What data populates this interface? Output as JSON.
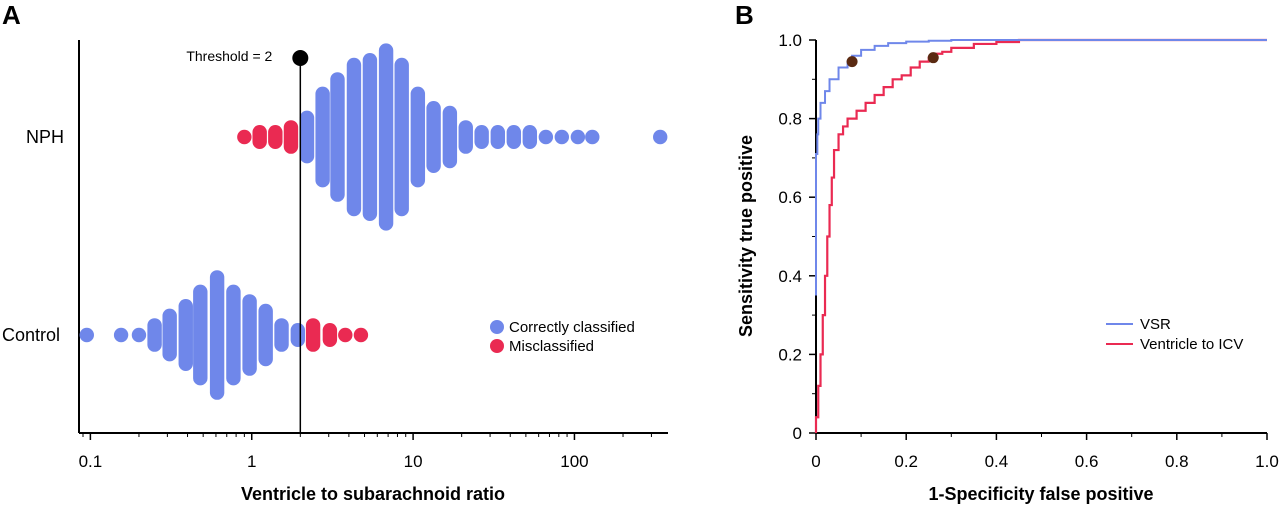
{
  "chart_data": [
    {
      "panel": "A",
      "type": "scatter",
      "subtype": "beeswarm",
      "xlabel": "Ventricle to subarachnoid ratio",
      "ylabel": "",
      "xscale": "log",
      "xlim": [
        0.085,
        380
      ],
      "xticks": [
        0.1,
        1,
        10,
        100
      ],
      "xtick_labels": [
        "0.1",
        "1",
        "10",
        "100"
      ],
      "categories": [
        "NPH",
        "Control"
      ],
      "threshold": {
        "value": 2,
        "label": "Threshold = 2"
      },
      "legend": {
        "position": "right",
        "entries": [
          {
            "label": "Correctly classified",
            "color": "#6f87ea"
          },
          {
            "label": "Misclassified",
            "color": "#ea2a52"
          }
        ]
      },
      "series": [
        {
          "name": "NPH",
          "columns": [
            {
              "x": 0.9,
              "count": 1,
              "status": "Misclassified"
            },
            {
              "x": 1.12,
              "count": 2,
              "status": "Misclassified"
            },
            {
              "x": 1.4,
              "count": 2,
              "status": "Misclassified"
            },
            {
              "x": 1.75,
              "count": 3,
              "status": "Misclassified"
            },
            {
              "x": 2.2,
              "count": 5,
              "status": "Correctly classified"
            },
            {
              "x": 2.75,
              "count": 10,
              "status": "Correctly classified"
            },
            {
              "x": 3.4,
              "count": 13,
              "status": "Correctly classified"
            },
            {
              "x": 4.3,
              "count": 16,
              "status": "Correctly classified"
            },
            {
              "x": 5.4,
              "count": 17,
              "status": "Correctly classified"
            },
            {
              "x": 6.8,
              "count": 19,
              "status": "Correctly classified"
            },
            {
              "x": 8.5,
              "count": 16,
              "status": "Correctly classified"
            },
            {
              "x": 10.7,
              "count": 10,
              "status": "Correctly classified"
            },
            {
              "x": 13.4,
              "count": 7,
              "status": "Correctly classified"
            },
            {
              "x": 16.9,
              "count": 6,
              "status": "Correctly classified"
            },
            {
              "x": 21.2,
              "count": 3,
              "status": "Correctly classified"
            },
            {
              "x": 26.6,
              "count": 2,
              "status": "Correctly classified"
            },
            {
              "x": 33.5,
              "count": 2,
              "status": "Correctly classified"
            },
            {
              "x": 42.1,
              "count": 2,
              "status": "Correctly classified"
            },
            {
              "x": 52.9,
              "count": 2,
              "status": "Correctly classified"
            },
            {
              "x": 66.5,
              "count": 1,
              "status": "Correctly classified"
            },
            {
              "x": 83.5,
              "count": 1,
              "status": "Correctly classified"
            },
            {
              "x": 105,
              "count": 1,
              "status": "Correctly classified"
            },
            {
              "x": 129,
              "count": 1,
              "status": "Correctly classified"
            },
            {
              "x": 340,
              "count": 1,
              "status": "Correctly classified"
            }
          ]
        },
        {
          "name": "Control",
          "columns": [
            {
              "x": 0.095,
              "count": 1,
              "status": "Correctly classified"
            },
            {
              "x": 0.155,
              "count": 1,
              "status": "Correctly classified"
            },
            {
              "x": 0.2,
              "count": 1,
              "status": "Correctly classified"
            },
            {
              "x": 0.25,
              "count": 3,
              "status": "Correctly classified"
            },
            {
              "x": 0.31,
              "count": 5,
              "status": "Correctly classified"
            },
            {
              "x": 0.39,
              "count": 7,
              "status": "Correctly classified"
            },
            {
              "x": 0.48,
              "count": 10,
              "status": "Correctly classified"
            },
            {
              "x": 0.61,
              "count": 13,
              "status": "Correctly classified"
            },
            {
              "x": 0.77,
              "count": 10,
              "status": "Correctly classified"
            },
            {
              "x": 0.97,
              "count": 8,
              "status": "Correctly classified"
            },
            {
              "x": 1.22,
              "count": 6,
              "status": "Correctly classified"
            },
            {
              "x": 1.53,
              "count": 3,
              "status": "Correctly classified"
            },
            {
              "x": 1.93,
              "count": 2,
              "status": "Correctly classified"
            },
            {
              "x": 2.4,
              "count": 3,
              "status": "Misclassified"
            },
            {
              "x": 3.05,
              "count": 2,
              "status": "Misclassified"
            },
            {
              "x": 3.8,
              "count": 1,
              "status": "Misclassified"
            },
            {
              "x": 4.75,
              "count": 1,
              "status": "Misclassified"
            }
          ]
        }
      ]
    },
    {
      "panel": "B",
      "type": "line",
      "xlabel": "1-Specificity false positive",
      "ylabel": "Sensitivity true positive",
      "xlim": [
        0,
        1
      ],
      "ylim": [
        0,
        1
      ],
      "xticks": [
        0,
        0.2,
        0.4,
        0.6,
        0.8,
        1.0
      ],
      "xtick_labels": [
        "0",
        "0.2",
        "0.4",
        "0.6",
        "0.8",
        "1.0"
      ],
      "yticks": [
        0,
        0.2,
        0.4,
        0.6,
        0.8,
        1.0
      ],
      "ytick_labels": [
        "0",
        "0.2",
        "0.4",
        "0.6",
        "0.8",
        "1.0"
      ],
      "legend": {
        "position": "bottom-right"
      },
      "series": [
        {
          "name": "VSR",
          "color": "#6f87ea",
          "x": [
            0.0,
            0.0,
            0.003,
            0.005,
            0.01,
            0.02,
            0.03,
            0.05,
            0.07,
            0.08,
            0.1,
            0.13,
            0.16,
            0.2,
            0.25,
            0.3,
            0.4,
            0.5,
            0.6,
            0.8,
            1.0
          ],
          "y": [
            0.35,
            0.6,
            0.71,
            0.76,
            0.8,
            0.84,
            0.87,
            0.9,
            0.93,
            0.945,
            0.96,
            0.975,
            0.985,
            0.992,
            0.996,
            0.998,
            1.0,
            1.0,
            1.0,
            1.0,
            1.0
          ],
          "marker": {
            "x": 0.08,
            "y": 0.945
          }
        },
        {
          "name": "Ventricle to ICV",
          "color": "#ea2a52",
          "x": [
            0.0,
            0.005,
            0.01,
            0.015,
            0.02,
            0.025,
            0.03,
            0.035,
            0.04,
            0.05,
            0.06,
            0.07,
            0.09,
            0.11,
            0.13,
            0.15,
            0.17,
            0.19,
            0.21,
            0.23,
            0.25,
            0.26,
            0.28,
            0.3,
            0.35,
            0.4,
            0.45,
            0.5,
            0.6,
            0.8,
            1.0
          ],
          "y": [
            0.0,
            0.04,
            0.12,
            0.2,
            0.3,
            0.4,
            0.5,
            0.58,
            0.65,
            0.72,
            0.76,
            0.78,
            0.8,
            0.82,
            0.84,
            0.86,
            0.88,
            0.9,
            0.91,
            0.93,
            0.945,
            0.955,
            0.965,
            0.97,
            0.98,
            0.99,
            0.995,
            1.0,
            1.0,
            1.0,
            1.0
          ],
          "marker": {
            "x": 0.26,
            "y": 0.955
          }
        }
      ]
    }
  ]
}
